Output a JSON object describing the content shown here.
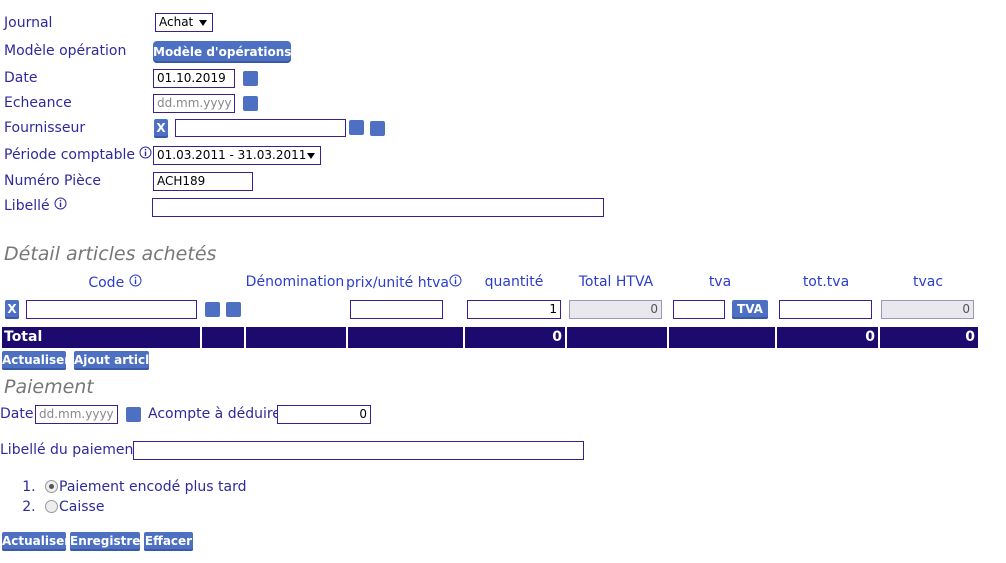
{
  "form": {
    "journal": {
      "label": "Journal",
      "value": "Achat"
    },
    "model": {
      "label": "Modèle opération",
      "button": "Modèle d'opérations"
    },
    "date": {
      "label": "Date",
      "value": "01.10.2019"
    },
    "echeance": {
      "label": "Echeance",
      "placeholder": "dd.mm.yyyy"
    },
    "fournisseur": {
      "label": "Fournisseur",
      "clear_button": "X"
    },
    "periode": {
      "label": "Période comptable",
      "value": "01.03.2011 - 31.03.2011"
    },
    "piece": {
      "label": "Numéro Pièce",
      "value": "ACH189"
    },
    "libelle": {
      "label": "Libellé"
    }
  },
  "detail": {
    "title": "Détail articles achetés",
    "headers": [
      "Code",
      "Dénomination",
      "prix/unité htva",
      "quantité",
      "Total HTVA",
      "tva",
      "tot.tva",
      "tvac"
    ],
    "row": {
      "clear_button": "X",
      "quantite": 1,
      "total_htva": 0,
      "tva_button": "TVA",
      "tvac": 0
    },
    "total": {
      "label": "Total",
      "total_htva": 0,
      "tot_tva": 0,
      "tvac": 0
    },
    "buttons": [
      "Actualiser",
      "Ajout article"
    ]
  },
  "paiement": {
    "title": "Paiement",
    "date_label": "Date",
    "date_placeholder": "dd.mm.yyyy",
    "acompte_label": "Acompte à déduire",
    "acompte_value": 0,
    "libelle_label": "Libellé du paiement",
    "options": [
      "Paiement encodé plus tard",
      "Caisse"
    ]
  },
  "buttons": [
    "Actualiser",
    "Enregistrer",
    "Effacer"
  ]
}
